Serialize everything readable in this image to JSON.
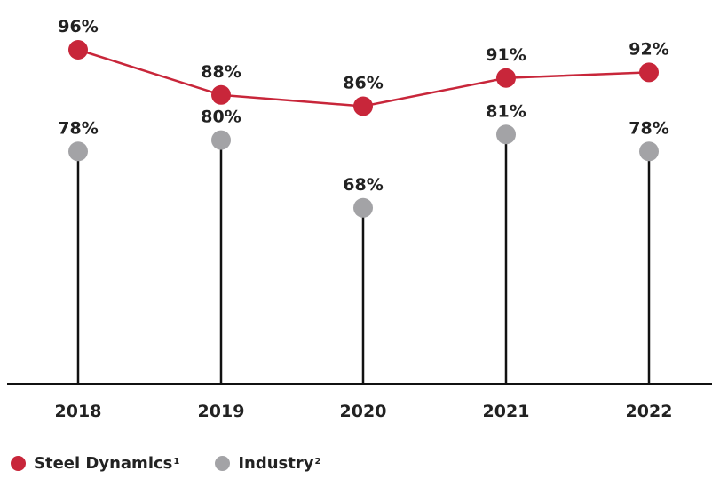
{
  "chart_data": {
    "type": "line",
    "categories": [
      "2018",
      "2019",
      "2020",
      "2021",
      "2022"
    ],
    "series": [
      {
        "name": "Steel Dynamics",
        "footnote": "1",
        "values": [
          96,
          88,
          86,
          91,
          92
        ],
        "labels": [
          "96%",
          "88%",
          "86%",
          "91%",
          "92%"
        ],
        "color": "#c8263a",
        "style": "line-with-markers"
      },
      {
        "name": "Industry",
        "footnote": "2",
        "values": [
          78,
          80,
          68,
          81,
          78
        ],
        "labels": [
          "78%",
          "80%",
          "68%",
          "81%",
          "78%"
        ],
        "color": "#a3a3a6",
        "style": "lollipop"
      }
    ],
    "unit": "%",
    "legend_position": "bottom-left",
    "grid": false
  },
  "colors": {
    "stem": "#111111",
    "baseline": "#111111",
    "text": "#222222"
  }
}
